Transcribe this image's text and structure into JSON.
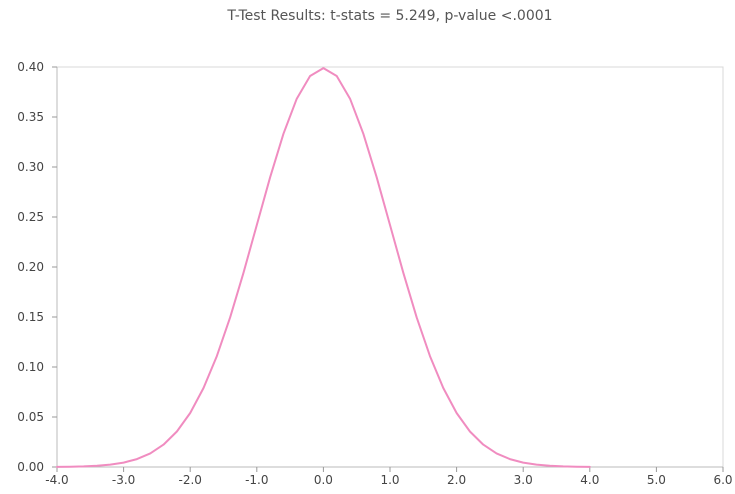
{
  "chart_data": {
    "type": "line",
    "title": "T-Test Results: t-stats = 5.249, p-value <.0001",
    "xlabel": "",
    "ylabel": "",
    "xlim": [
      -4.0,
      6.0
    ],
    "ylim": [
      0.0,
      0.4
    ],
    "x_ticks": [
      -4.0,
      -3.0,
      -2.0,
      -1.0,
      0.0,
      1.0,
      2.0,
      3.0,
      4.0,
      5.0,
      6.0
    ],
    "x_tick_labels": [
      "-4.0",
      "-3.0",
      "-2.0",
      "-1.0",
      "0.0",
      "1.0",
      "2.0",
      "3.0",
      "4.0",
      "5.0",
      "6.0"
    ],
    "y_ticks": [
      0.0,
      0.05,
      0.1,
      0.15,
      0.2,
      0.25,
      0.3,
      0.35,
      0.4
    ],
    "y_tick_labels": [
      "0.00",
      "0.05",
      "0.10",
      "0.15",
      "0.20",
      "0.25",
      "0.30",
      "0.35",
      "0.40"
    ],
    "grid": false,
    "legend": "none",
    "series": [
      {
        "color": "#f08cc0",
        "x": [
          -4.0,
          -3.8,
          -3.6,
          -3.4,
          -3.2,
          -3.0,
          -2.8,
          -2.6,
          -2.4,
          -2.2,
          -2.0,
          -1.8,
          -1.6,
          -1.4,
          -1.2,
          -1.0,
          -0.8,
          -0.6,
          -0.4,
          -0.2,
          0.0,
          0.2,
          0.4,
          0.6,
          0.8,
          1.0,
          1.2,
          1.4,
          1.6,
          1.8,
          2.0,
          2.2,
          2.4,
          2.6,
          2.8,
          3.0,
          3.2,
          3.4,
          3.6,
          3.8,
          4.0
        ],
        "y": [
          0.0001,
          0.0003,
          0.0006,
          0.0012,
          0.0024,
          0.0044,
          0.0079,
          0.0136,
          0.0224,
          0.0355,
          0.054,
          0.079,
          0.1109,
          0.1497,
          0.1942,
          0.242,
          0.2897,
          0.3332,
          0.3683,
          0.391,
          0.3989,
          0.391,
          0.3683,
          0.3332,
          0.2897,
          0.242,
          0.1942,
          0.1497,
          0.1109,
          0.079,
          0.054,
          0.0355,
          0.0224,
          0.0136,
          0.0079,
          0.0044,
          0.0024,
          0.0012,
          0.0006,
          0.0003,
          0.0001
        ]
      }
    ]
  }
}
